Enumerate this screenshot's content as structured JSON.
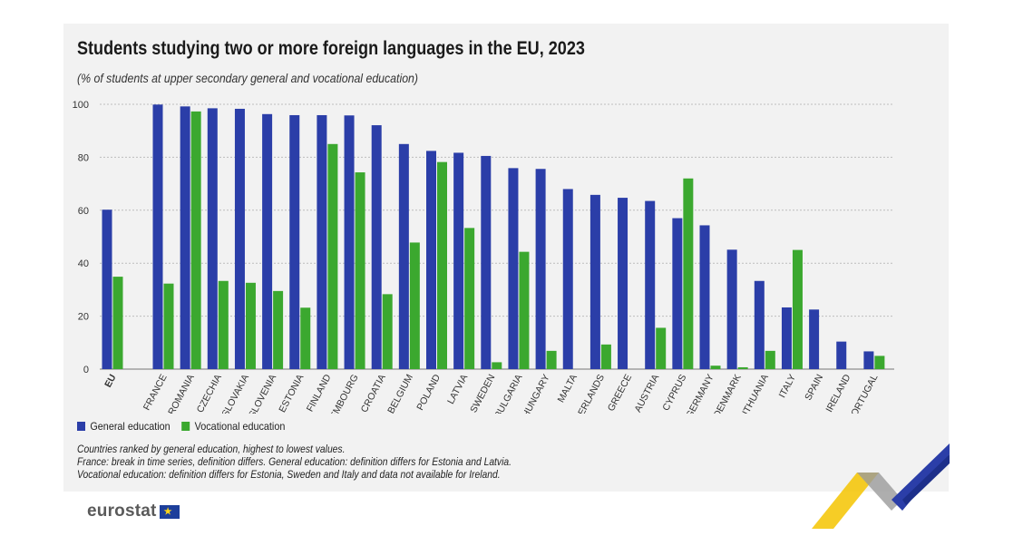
{
  "title": "Students studying two or more foreign languages in the EU, 2023",
  "subtitle": "(% of students at upper secondary general and vocational education)",
  "legend": {
    "general": "General education",
    "vocational": "Vocational education"
  },
  "notes": [
    "Countries ranked by general education, highest to lowest values.",
    "France: break in time series, definition differs. General education: definition differs for Estonia and Latvia.",
    "Vocational education: definition differs for Estonia, Sweden and Italy and data not available for Ireland."
  ],
  "logo": "eurostat",
  "colors": {
    "general": "#2b3ea8",
    "vocational": "#3ba82f",
    "grid": "#bdbdbd",
    "panel": "#f2f2f2"
  },
  "chart_data": {
    "type": "bar",
    "title": "Students studying two or more foreign languages in the EU, 2023",
    "ylim": [
      0,
      100
    ],
    "yticks": [
      0,
      20,
      40,
      60,
      80,
      100
    ],
    "grid": true,
    "legend_position": "bottom-left",
    "categories": [
      "EU",
      "France",
      "Romania",
      "Czechia",
      "Slovakia",
      "Slovenia",
      "Estonia",
      "Finland",
      "Luxembourg",
      "Croatia",
      "Belgium",
      "Poland",
      "Latvia",
      "Sweden",
      "Bulgaria",
      "Hungary",
      "Malta",
      "Netherlands",
      "Greece",
      "Austria",
      "Cyprus",
      "Germany",
      "Denmark",
      "Lithuania",
      "Italy",
      "Spain",
      "Ireland",
      "Portugal"
    ],
    "series": [
      {
        "name": "General education",
        "values": [
          60.2,
          99.9,
          99.2,
          98.5,
          98.3,
          96.3,
          95.9,
          95.9,
          95.8,
          92.1,
          85.0,
          82.4,
          81.7,
          80.5,
          75.9,
          75.6,
          68.0,
          65.8,
          64.7,
          63.5,
          57.0,
          54.3,
          45.1,
          33.3,
          23.3,
          22.5,
          10.4,
          6.7
        ]
      },
      {
        "name": "Vocational education",
        "values": [
          34.9,
          32.3,
          97.3,
          33.3,
          32.6,
          29.5,
          23.2,
          85.0,
          74.3,
          28.3,
          47.8,
          78.2,
          53.3,
          2.6,
          44.3,
          6.9,
          null,
          9.3,
          null,
          15.6,
          72.0,
          1.3,
          0.7,
          6.9,
          45.0,
          null,
          null,
          5.0
        ]
      }
    ]
  }
}
